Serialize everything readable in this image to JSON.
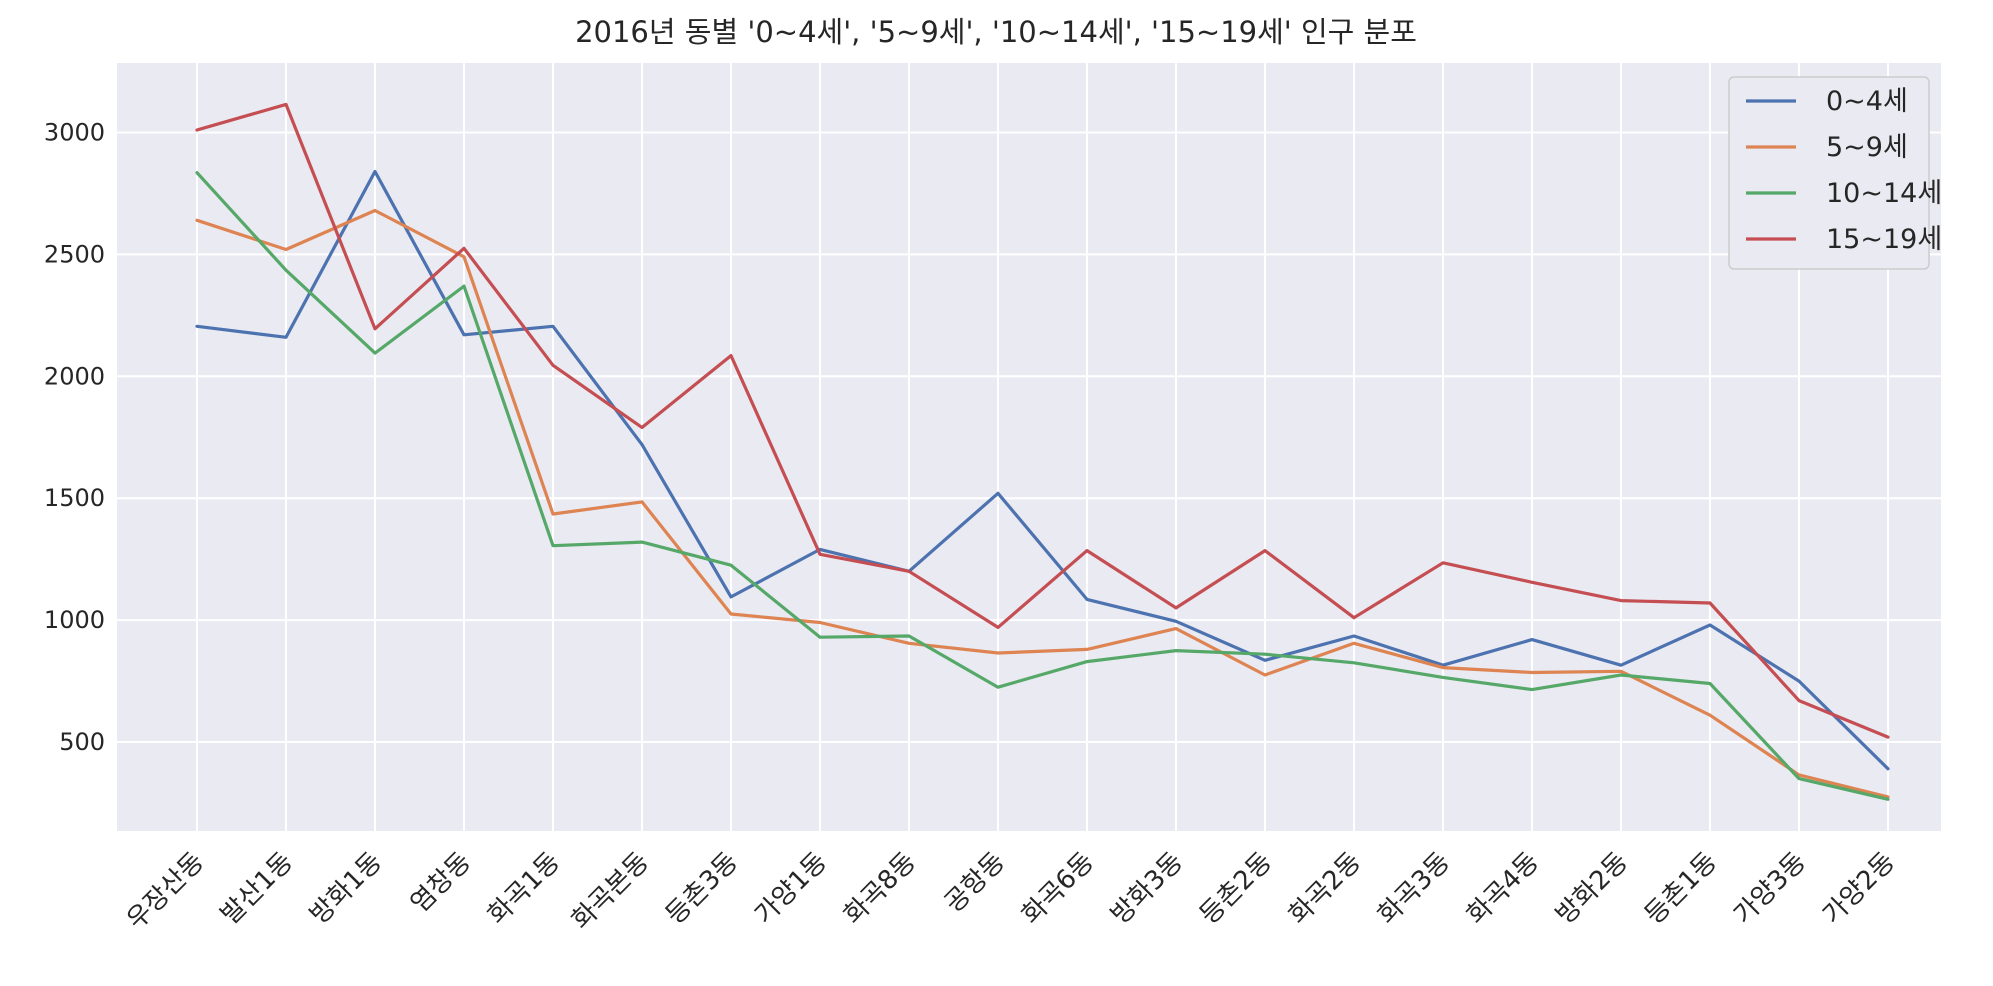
{
  "chart_data": {
    "type": "line",
    "title": "2016년 동별 '0~4세', '5~9세', '10~14세', '15~19세' 인구 분포",
    "xlabel": "",
    "ylabel": "",
    "categories": [
      "우장산동",
      "발산1동",
      "방화1동",
      "염창동",
      "화곡1동",
      "화곡본동",
      "등촌3동",
      "가양1동",
      "화곡8동",
      "공항동",
      "화곡6동",
      "방화3동",
      "등촌2동",
      "화곡2동",
      "화곡3동",
      "화곡4동",
      "방화2동",
      "등촌1동",
      "가양3동",
      "가양2동"
    ],
    "yticks": [
      500,
      1000,
      1500,
      2000,
      2500,
      3000
    ],
    "ylim": [
      135,
      3285
    ],
    "grid": true,
    "legend_position": "top-right",
    "series": [
      {
        "name": "0~4세",
        "color": "#4c72b0",
        "values": [
          2205,
          2160,
          2840,
          2170,
          2205,
          1720,
          1095,
          1290,
          1200,
          1520,
          1085,
          995,
          835,
          935,
          815,
          920,
          815,
          980,
          750,
          390
        ]
      },
      {
        "name": "5~9세",
        "color": "#dd8452",
        "values": [
          2640,
          2520,
          2680,
          2490,
          1435,
          1485,
          1025,
          990,
          905,
          865,
          880,
          965,
          775,
          905,
          805,
          785,
          790,
          610,
          365,
          275
        ]
      },
      {
        "name": "10~14세",
        "color": "#55a868",
        "values": [
          2835,
          2435,
          2095,
          2370,
          1305,
          1320,
          1225,
          930,
          935,
          725,
          830,
          875,
          860,
          825,
          765,
          715,
          775,
          740,
          350,
          265
        ]
      },
      {
        "name": "15~19세",
        "color": "#c44e52",
        "values": [
          3010,
          3115,
          2195,
          2525,
          2045,
          1790,
          2085,
          1270,
          1200,
          970,
          1285,
          1050,
          1285,
          1010,
          1235,
          1155,
          1080,
          1070,
          670,
          520
        ]
      }
    ]
  }
}
